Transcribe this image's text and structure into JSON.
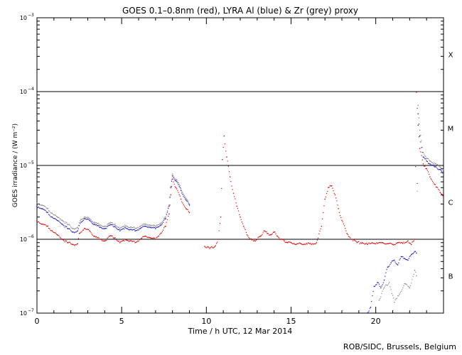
{
  "chart_data": {
    "type": "scatter",
    "title": "GOES 0.1–0.8nm (red), LYRA Al (blue) & Zr (grey) proxy",
    "xlabel": "Time / h UTC, 12 Mar 2014",
    "ylabel": "GOES irradiance / (W m⁻²)",
    "xlim": [
      0,
      24
    ],
    "ylim": [
      1e-07,
      0.001
    ],
    "yscale": "log",
    "x_ticks": [
      0,
      5,
      10,
      15,
      20
    ],
    "y_ticks": [
      {
        "value": 1e-07,
        "base": "10",
        "exp": "−7"
      },
      {
        "value": 1e-06,
        "base": "10",
        "exp": "−6"
      },
      {
        "value": 1e-05,
        "base": "10",
        "exp": "−5"
      },
      {
        "value": 0.0001,
        "base": "10",
        "exp": "−4"
      },
      {
        "value": 0.001,
        "base": "10",
        "exp": "−3"
      }
    ],
    "class_lines": [
      1e-06,
      1e-05,
      0.0001
    ],
    "flare_classes": [
      {
        "label": "B",
        "y": 3.2e-07
      },
      {
        "label": "C",
        "y": 3.2e-06
      },
      {
        "label": "M",
        "y": 3.2e-05
      },
      {
        "label": "X",
        "y": 0.00032
      }
    ],
    "series": [
      {
        "color": "#e00000",
        "x": [
          0.0,
          0.3,
          0.6,
          0.9,
          1.2,
          1.5,
          1.8,
          2.1,
          2.4,
          2.5,
          2.8,
          3.1,
          3.4,
          3.7,
          4.0,
          4.3,
          4.6,
          4.9,
          5.2,
          5.5,
          5.8,
          6.1,
          6.4,
          6.7,
          7.0,
          7.3,
          7.6,
          7.8,
          7.9,
          8.0,
          8.2,
          8.5,
          8.8,
          9.0,
          9.9,
          10.2,
          10.5,
          10.7,
          10.85,
          10.95,
          11.05,
          11.2,
          11.4,
          11.6,
          11.8,
          12.0,
          12.2,
          12.4,
          12.6,
          12.8,
          13.0,
          13.2,
          13.4,
          13.6,
          13.8,
          14.0,
          14.2,
          14.4,
          14.6,
          14.8,
          15.0,
          15.3,
          15.6,
          15.9,
          16.2,
          16.5,
          16.8,
          17.0,
          17.2,
          17.4,
          17.6,
          17.8,
          18.0,
          18.3,
          18.6,
          18.9,
          19.2,
          19.5,
          19.8,
          20.1,
          20.4,
          20.7,
          21.0,
          21.3,
          21.6,
          21.9,
          22.1,
          22.3,
          22.4,
          22.5,
          22.6,
          22.8,
          23.0,
          23.2,
          23.5,
          23.8,
          24.0
        ],
        "y": [
          1.8e-06,
          1.6e-06,
          1.5e-06,
          1.3e-06,
          1.15e-06,
          1e-06,
          9e-07,
          8.5e-07,
          8.7e-07,
          1.2e-06,
          1.4e-06,
          1.3e-06,
          1.1e-06,
          1e-06,
          9.5e-07,
          1.1e-06,
          1.05e-06,
          9e-07,
          1e-06,
          9.5e-07,
          9e-07,
          1e-06,
          1.1e-06,
          1.05e-06,
          1e-06,
          1.2e-06,
          1.5e-06,
          2.2e-06,
          4e-06,
          6.5e-06,
          5e-06,
          3.5e-06,
          2.6e-06,
          2.3e-06,
          8e-07,
          7.5e-07,
          8e-07,
          1e-06,
          2e-06,
          1.2e-05,
          2.5e-05,
          1.3e-05,
          7e-06,
          4.2e-06,
          2.8e-06,
          2e-06,
          1.5e-06,
          1.15e-06,
          1e-06,
          9.5e-07,
          1e-06,
          1.1e-06,
          1.3e-06,
          1.2e-06,
          1.15e-06,
          1.25e-06,
          1.1e-06,
          1e-06,
          9.5e-07,
          9e-07,
          9e-07,
          8.5e-07,
          8.7e-07,
          8.8e-07,
          8.5e-07,
          9e-07,
          1.5e-06,
          3.5e-06,
          5e-06,
          5.3e-06,
          4e-06,
          2.6e-06,
          1.8e-06,
          1.2e-06,
          1e-06,
          9e-07,
          9e-07,
          8.5e-07,
          9e-07,
          8.8e-07,
          9e-07,
          8.7e-07,
          8.5e-07,
          9e-07,
          8.8e-07,
          9.5e-07,
          8.5e-07,
          1e-06,
          9.8e-05,
          3.5e-05,
          1.7e-05,
          1.05e-05,
          9e-06,
          7e-06,
          5.5e-06,
          4.3e-06,
          3.8e-06
        ]
      },
      {
        "color": "#1818c8",
        "x": [
          0.0,
          0.3,
          0.6,
          0.9,
          1.2,
          1.5,
          1.8,
          2.1,
          2.4,
          2.6,
          2.8,
          3.1,
          3.4,
          3.7,
          4.0,
          4.3,
          4.6,
          4.9,
          5.2,
          5.5,
          5.8,
          6.1,
          6.4,
          6.7,
          7.0,
          7.3,
          7.6,
          7.8,
          7.9,
          8.0,
          8.2,
          8.5,
          8.8,
          9.0,
          19.5,
          19.7,
          19.9,
          20.1,
          20.3,
          20.5,
          20.7,
          20.9,
          21.1,
          21.3,
          21.5,
          21.7,
          21.9,
          22.1,
          22.3,
          22.4,
          22.5,
          22.6,
          22.8,
          23.0,
          23.2,
          23.5,
          23.8,
          24.0
        ],
        "y": [
          2.8e-06,
          2.6e-06,
          2.3e-06,
          2e-06,
          1.8e-06,
          1.6e-06,
          1.4e-06,
          1.25e-06,
          1.3e-06,
          1.7e-06,
          1.9e-06,
          1.8e-06,
          1.6e-06,
          1.45e-06,
          1.4e-06,
          1.55e-06,
          1.5e-06,
          1.3e-06,
          1.45e-06,
          1.35e-06,
          1.3e-06,
          1.4e-06,
          1.5e-06,
          1.45e-06,
          1.4e-06,
          1.55e-06,
          1.9e-06,
          2.8e-06,
          5e-06,
          7.2e-06,
          6.2e-06,
          4.6e-06,
          3.4e-06,
          2.9e-06,
          1e-07,
          1.2e-07,
          2.3e-07,
          2.6e-07,
          2.2e-07,
          2.8e-07,
          4.2e-07,
          4.8e-07,
          5.2e-07,
          4.5e-07,
          5.8e-07,
          5.5e-07,
          5.2e-07,
          6.2e-07,
          6.8e-07,
          6.5e-07,
          5e-05,
          2.5e-05,
          1.3e-05,
          1.15e-05,
          1.05e-05,
          9.5e-06,
          8.8e-06,
          8e-06
        ]
      },
      {
        "color": "#888888",
        "x": [
          0.0,
          0.3,
          0.6,
          0.9,
          1.2,
          1.5,
          1.8,
          2.1,
          2.4,
          2.6,
          2.8,
          3.1,
          3.4,
          3.7,
          4.0,
          4.3,
          4.6,
          4.9,
          5.2,
          5.5,
          5.8,
          6.1,
          6.4,
          6.7,
          7.0,
          7.3,
          7.6,
          7.8,
          7.9,
          8.0,
          8.2,
          8.5,
          8.8,
          9.0,
          20.2,
          20.5,
          20.8,
          21.1,
          21.4,
          21.7,
          22.0,
          22.3,
          22.4,
          22.5,
          22.6,
          22.8,
          23.0,
          23.2,
          23.5,
          23.8,
          24.0
        ],
        "y": [
          3.1e-06,
          2.9e-06,
          2.6e-06,
          2.25e-06,
          2e-06,
          1.8e-06,
          1.6e-06,
          1.4e-06,
          1.45e-06,
          1.85e-06,
          2e-06,
          1.9e-06,
          1.7e-06,
          1.55e-06,
          1.5e-06,
          1.65e-06,
          1.6e-06,
          1.4e-06,
          1.55e-06,
          1.45e-06,
          1.4e-06,
          1.5e-06,
          1.6e-06,
          1.55e-06,
          1.5e-06,
          1.65e-06,
          2e-06,
          2.9e-06,
          5.2e-06,
          7.6e-06,
          6.5e-06,
          4.9e-06,
          3.6e-06,
          3e-06,
          1.5e-07,
          2.2e-07,
          2.6e-07,
          1.4e-07,
          1.8e-07,
          2.5e-07,
          2.2e-07,
          3.8e-07,
          3.2e-07,
          6.5e-05,
          3e-05,
          1.5e-05,
          1.25e-05,
          1.15e-05,
          1.05e-05,
          9.5e-06,
          8.8e-06
        ]
      }
    ]
  },
  "credit": "ROB/SIDC, Brussels, Belgium"
}
